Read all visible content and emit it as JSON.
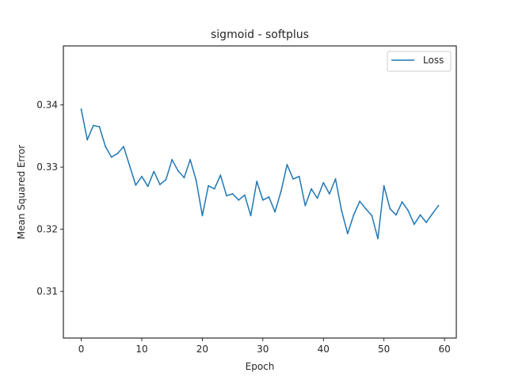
{
  "chart_data": {
    "type": "line",
    "title": "sigmoid - softplus",
    "xlabel": "Epoch",
    "ylabel": "Mean Squared Error",
    "xlim": [
      -2.95,
      61.95
    ],
    "ylim": [
      0.3025,
      0.3495
    ],
    "xticks": [
      0,
      10,
      20,
      30,
      40,
      50,
      60
    ],
    "yticks": [
      0.31,
      0.32,
      0.33,
      0.34
    ],
    "ytick_labels": [
      "0.31",
      "0.32",
      "0.33",
      "0.34"
    ],
    "grid": false,
    "legend_position": "top-right",
    "series": [
      {
        "name": "Loss",
        "color": "#1f77b4",
        "x": [
          0,
          1,
          2,
          3,
          4,
          5,
          6,
          7,
          8,
          9,
          10,
          11,
          12,
          13,
          14,
          15,
          16,
          17,
          18,
          19,
          20,
          21,
          22,
          23,
          24,
          25,
          26,
          27,
          28,
          29,
          30,
          31,
          32,
          33,
          34,
          35,
          36,
          37,
          38,
          39,
          40,
          41,
          42,
          43,
          44,
          45,
          46,
          47,
          48,
          49,
          50,
          51,
          52,
          53,
          54,
          55,
          56,
          57,
          58,
          59
        ],
        "values": [
          0.3393,
          0.3344,
          0.3367,
          0.3365,
          0.3333,
          0.3316,
          0.3322,
          0.3333,
          0.3302,
          0.3271,
          0.3285,
          0.3269,
          0.3293,
          0.3272,
          0.328,
          0.3312,
          0.3294,
          0.3283,
          0.3312,
          0.3278,
          0.3222,
          0.327,
          0.3265,
          0.3287,
          0.3254,
          0.3257,
          0.3247,
          0.3255,
          0.3222,
          0.3277,
          0.3247,
          0.3252,
          0.3228,
          0.3261,
          0.3304,
          0.3281,
          0.3285,
          0.3238,
          0.3265,
          0.325,
          0.3275,
          0.3257,
          0.3281,
          0.323,
          0.3193,
          0.3223,
          0.3245,
          0.3233,
          0.3222,
          0.3185,
          0.327,
          0.3233,
          0.3223,
          0.3244,
          0.323,
          0.3208,
          0.3223,
          0.3211,
          0.3225,
          0.3238
        ]
      }
    ]
  }
}
